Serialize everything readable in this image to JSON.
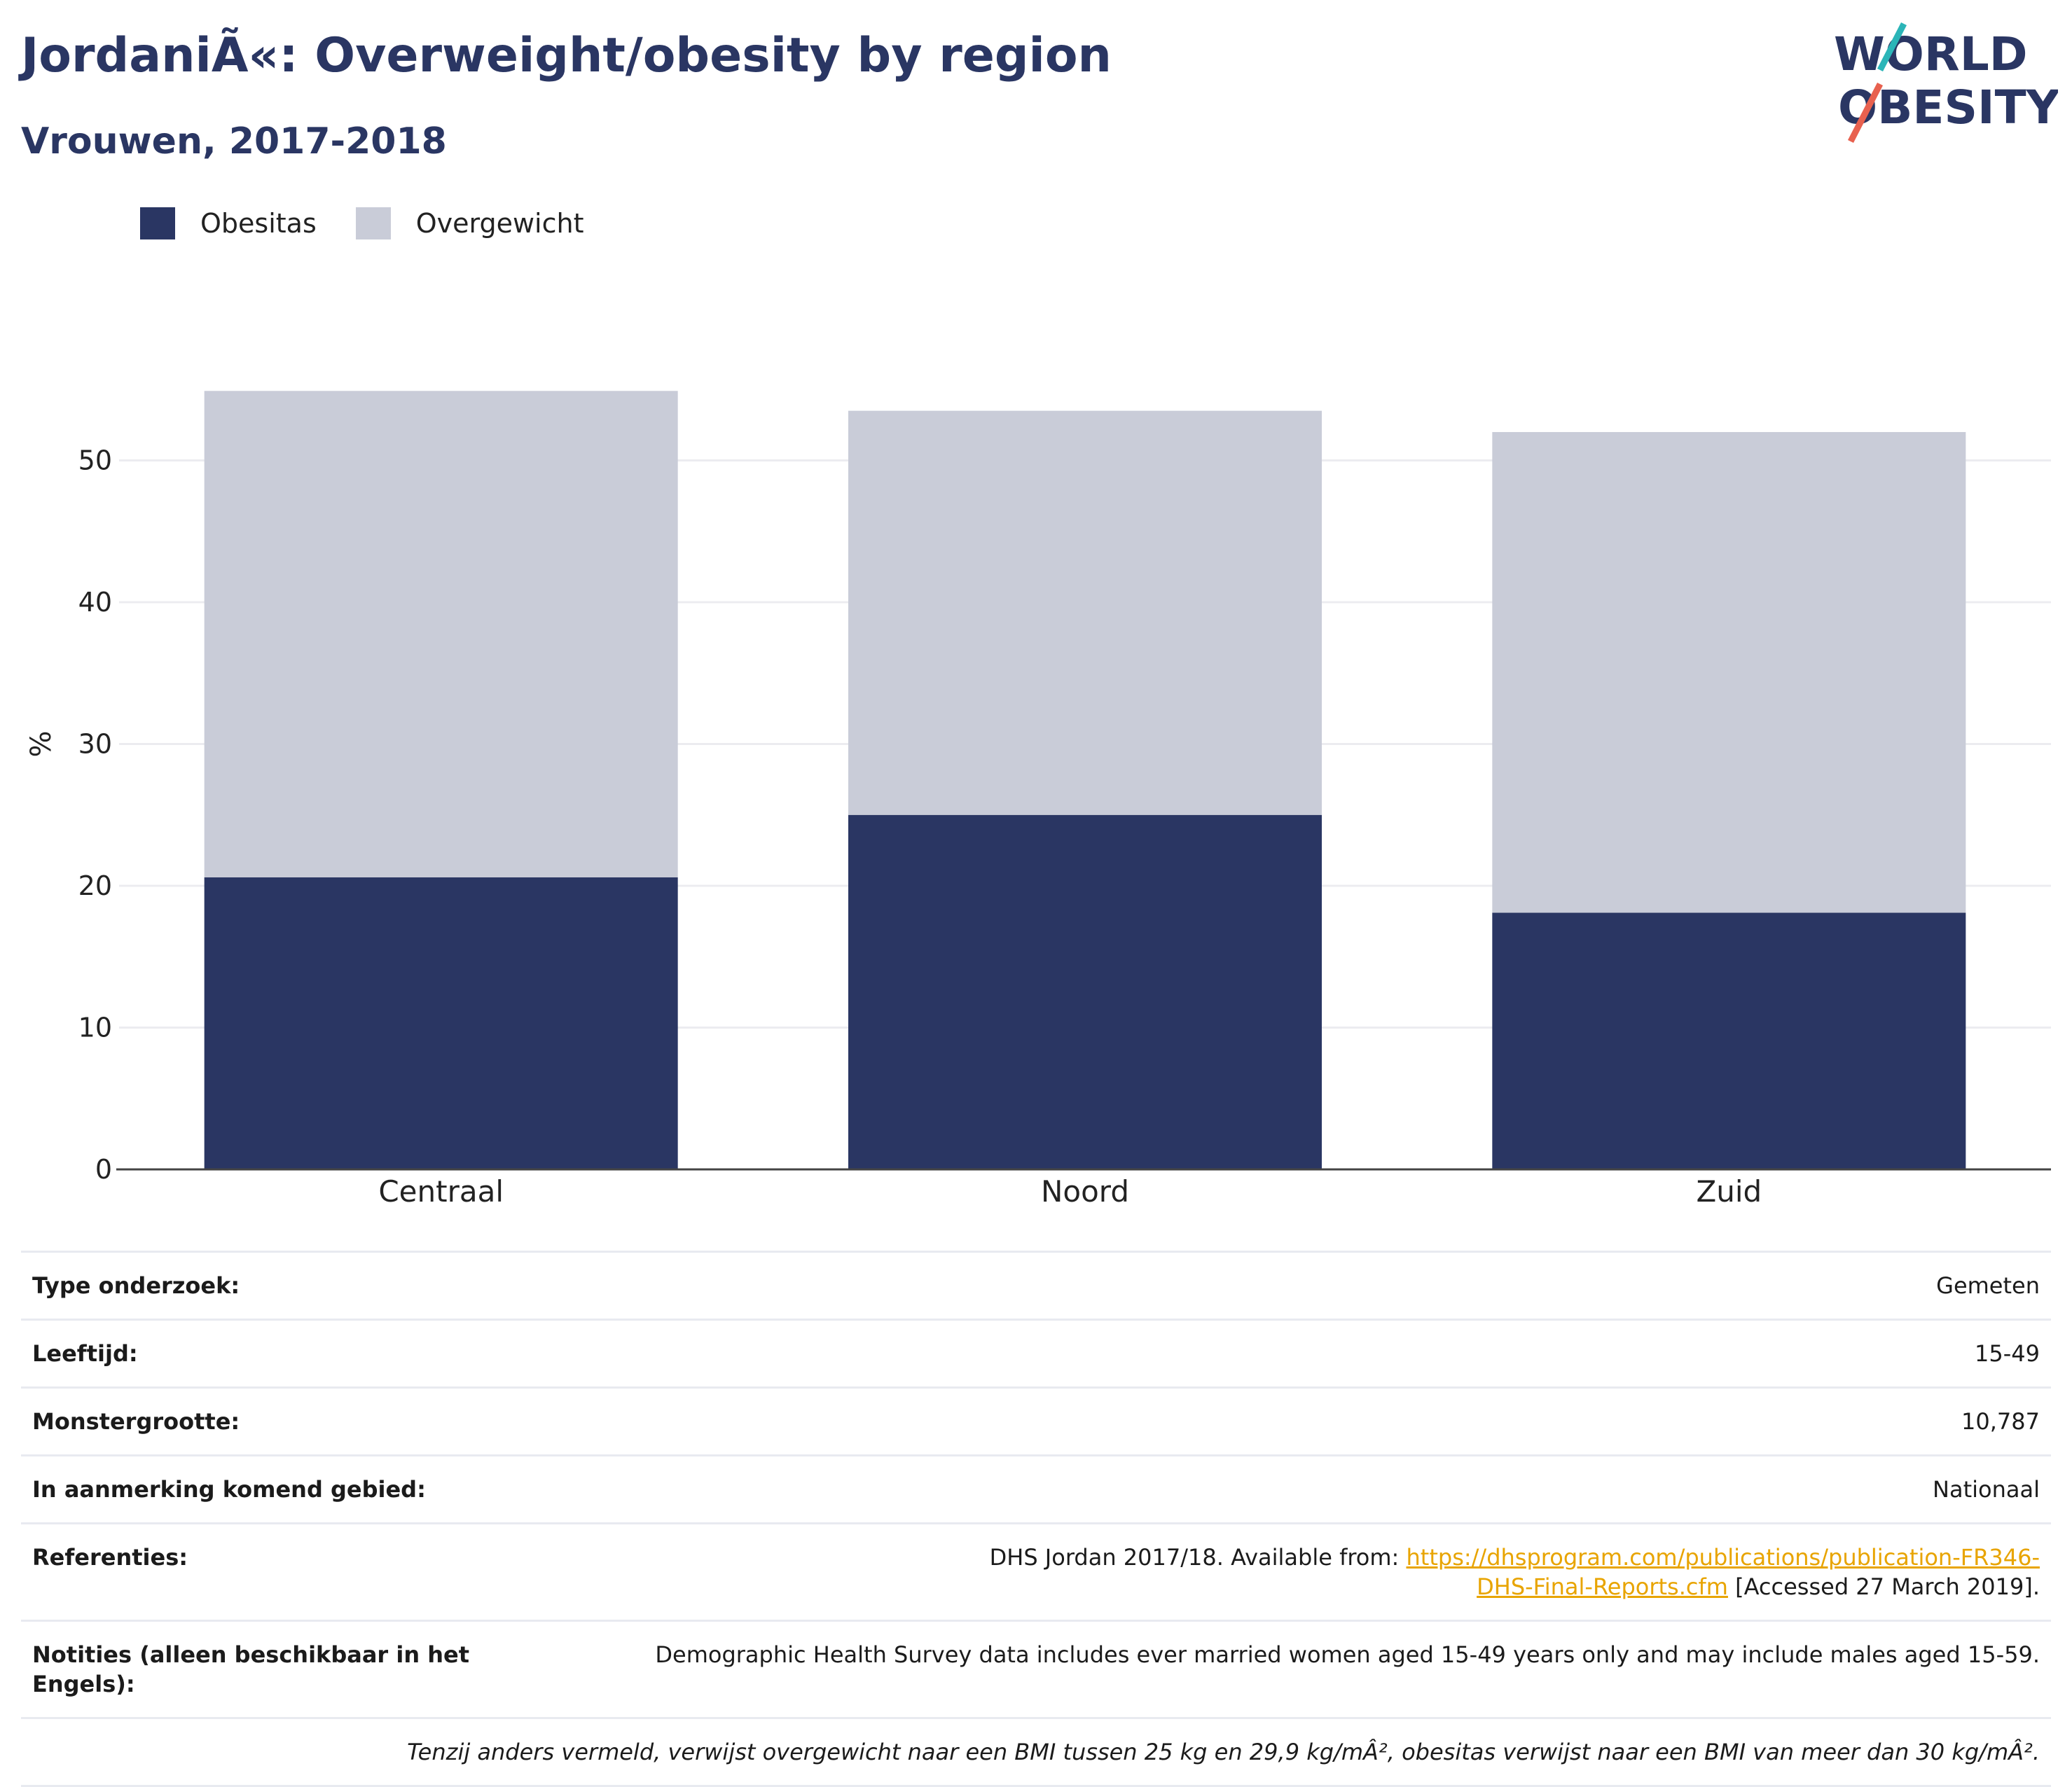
{
  "header": {
    "title": "JordaniÃ«: Overweight/obesity by region",
    "subtitle": "Vrouwen, 2017-2018"
  },
  "logo": {
    "line1": "WORLD",
    "line2": "OBESITY"
  },
  "legend": [
    {
      "label": "Obesitas",
      "color": "#2a3663"
    },
    {
      "label": "Overgewicht",
      "color": "#c9ccd8"
    }
  ],
  "chart_data": {
    "type": "bar",
    "stacked": true,
    "categories": [
      "Centraal",
      "Noord",
      "Zuid"
    ],
    "series": [
      {
        "name": "Obesitas",
        "values": [
          20.6,
          25.0,
          18.1
        ],
        "color": "#2a3663"
      },
      {
        "name": "Overgewicht",
        "values": [
          34.3,
          28.5,
          33.9
        ],
        "color": "#c9ccd8"
      }
    ],
    "ylabel": "%",
    "ylim": [
      0,
      60
    ],
    "yticks": [
      0,
      10,
      20,
      30,
      40,
      50
    ],
    "grid": true,
    "legend_position": "top-left"
  },
  "info": {
    "rows": [
      {
        "label": "Type onderzoek:",
        "value": "Gemeten"
      },
      {
        "label": "Leeftijd:",
        "value": "15-49"
      },
      {
        "label": "Monstergrootte:",
        "value": "10,787"
      },
      {
        "label": "In aanmerking komend gebied:",
        "value": "Nationaal"
      }
    ],
    "references": {
      "label": "Referenties:",
      "prefix": "DHS Jordan 2017/18. Available from: ",
      "link": "https://dhsprogram.com/publications/publication-FR346-DHS-Final-Reports.cfm",
      "suffix": " [Accessed 27 March 2019]."
    },
    "notes": {
      "label": "Notities (alleen beschikbaar in het Engels):",
      "value": "Demographic Health Survey data includes ever married women aged 15-49 years only and may include males aged 15-59."
    },
    "footnote": "Tenzij anders vermeld, verwijst overgewicht naar een BMI tussen 25 kg en 29,9 kg/mÂ², obesitas verwijst naar een BMI van meer dan 30 kg/mÂ²."
  }
}
